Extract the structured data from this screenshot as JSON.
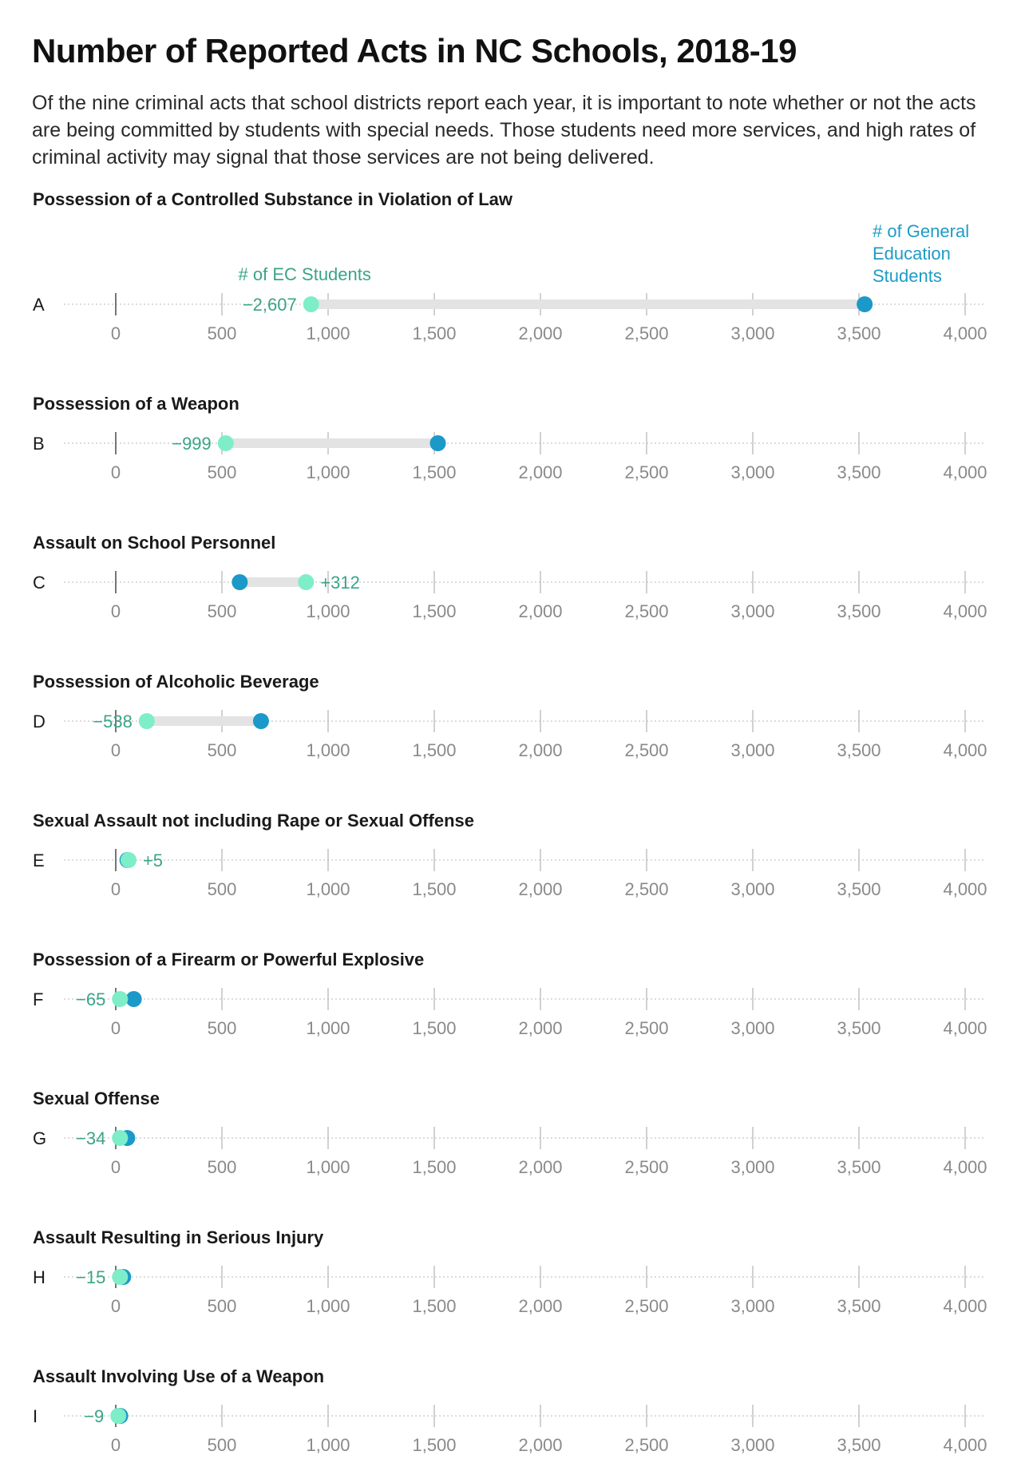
{
  "title": "Number of Reported Acts in NC Schools, 2018-19",
  "subtitle": "Of the nine criminal acts that school districts report each year, it is important to note whether or not the acts are being committed by students with special needs. Those students need more services, and high rates of criminal activity may signal that those services are not being delivered.",
  "colors": {
    "ec": "#7eeec8",
    "general": "#1b99c8",
    "diff_text": "#3aa487",
    "legend_general_text": "#1d9bc7",
    "bar": "#e3e3e3",
    "tick": "#9a9a9a",
    "grid": "#c8c8c8"
  },
  "legend": {
    "ec": "# of EC Students",
    "general": [
      "# of General",
      "Education",
      "Students"
    ]
  },
  "chart_data": {
    "type": "dot",
    "xlim": [
      0,
      4000
    ],
    "ticks": [
      0,
      500,
      1000,
      1500,
      2000,
      2500,
      3000,
      3500,
      4000
    ],
    "tick_labels": [
      "0",
      "500",
      "1,000",
      "1,500",
      "2,000",
      "2,500",
      "3,000",
      "3,500",
      "4,000"
    ],
    "series": [
      {
        "name": "# of EC Students",
        "key": "ec"
      },
      {
        "name": "# of General Education Students",
        "key": "general"
      }
    ],
    "panels": [
      {
        "row": "A",
        "title": "Possession of a Controlled Substance in Violation of Law",
        "ec": 920,
        "general": 3527,
        "diff_label": "−2,607"
      },
      {
        "row": "B",
        "title": "Possession of a Weapon",
        "ec": 518,
        "general": 1517,
        "diff_label": "−999"
      },
      {
        "row": "C",
        "title": "Assault on School Personnel",
        "ec": 896,
        "general": 584,
        "diff_label": "+312"
      },
      {
        "row": "D",
        "title": "Possession of Alcoholic Beverage",
        "ec": 146,
        "general": 684,
        "diff_label": "−538"
      },
      {
        "row": "E",
        "title": "Sexual Assault not including Rape or Sexual Offense",
        "ec": 60,
        "general": 55,
        "diff_label": "+5"
      },
      {
        "row": "F",
        "title": "Possession of a Firearm or Powerful Explosive",
        "ec": 20,
        "general": 85,
        "diff_label": "−65"
      },
      {
        "row": "G",
        "title": "Sexual Offense",
        "ec": 20,
        "general": 54,
        "diff_label": "−34"
      },
      {
        "row": "H",
        "title": "Assault Resulting in Serious Injury",
        "ec": 20,
        "general": 35,
        "diff_label": "−15"
      },
      {
        "row": "I",
        "title": "Assault Involving Use of a Weapon",
        "ec": 12,
        "general": 21,
        "diff_label": "−9"
      }
    ]
  }
}
